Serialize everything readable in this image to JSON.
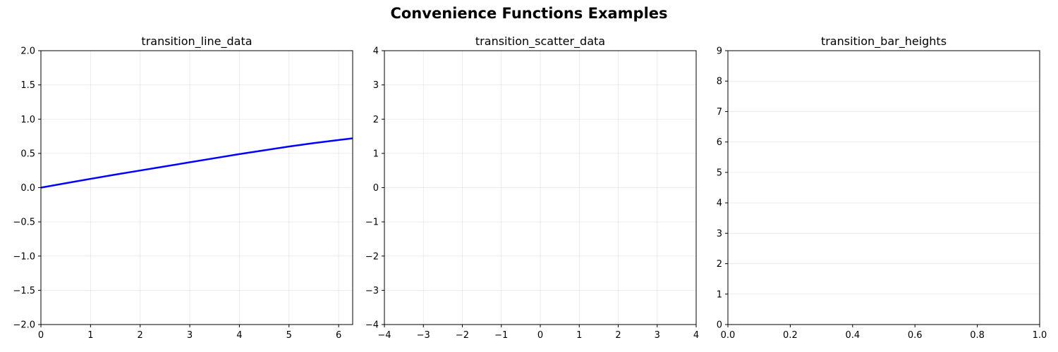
{
  "figure": {
    "title": "Convenience Functions Examples"
  },
  "chart_data": [
    {
      "type": "line",
      "title": "transition_line_data",
      "xlabel": "",
      "ylabel": "",
      "xlim": [
        0,
        6.283
      ],
      "ylim": [
        -2,
        2
      ],
      "xticks": [
        0,
        1,
        2,
        3,
        4,
        5,
        6
      ],
      "xtick_labels": [
        "0",
        "1",
        "2",
        "3",
        "4",
        "5",
        "6"
      ],
      "yticks": [
        -2.0,
        -1.5,
        -1.0,
        -0.5,
        0.0,
        0.5,
        1.0,
        1.5,
        2.0
      ],
      "ytick_labels": [
        "−2.0",
        "−1.5",
        "−1.0",
        "−0.5",
        "0.0",
        "0.5",
        "1.0",
        "1.5",
        "2.0"
      ],
      "grid": true,
      "series": [
        {
          "color": "#0000ff",
          "x": [
            0,
            0.5,
            1,
            1.5,
            2,
            2.5,
            3,
            3.5,
            4,
            4.5,
            5,
            5.5,
            6,
            6.283
          ],
          "y": [
            0,
            0.064,
            0.128,
            0.19,
            0.25,
            0.31,
            0.37,
            0.43,
            0.49,
            0.545,
            0.6,
            0.65,
            0.695,
            0.72
          ]
        }
      ]
    },
    {
      "type": "scatter",
      "title": "transition_scatter_data",
      "xlabel": "",
      "ylabel": "",
      "xlim": [
        -4,
        4
      ],
      "ylim": [
        -4,
        4
      ],
      "xticks": [
        -4,
        -3,
        -2,
        -1,
        0,
        1,
        2,
        3,
        4
      ],
      "xtick_labels": [
        "−4",
        "−3",
        "−2",
        "−1",
        "0",
        "1",
        "2",
        "3",
        "4"
      ],
      "yticks": [
        -4,
        -3,
        -2,
        -1,
        0,
        1,
        2,
        3,
        4
      ],
      "ytick_labels": [
        "−4",
        "−3",
        "−2",
        "−1",
        "0",
        "1",
        "2",
        "3",
        "4"
      ],
      "grid": true,
      "series": []
    },
    {
      "type": "bar",
      "title": "transition_bar_heights",
      "xlabel": "",
      "ylabel": "",
      "xlim": [
        0,
        1
      ],
      "ylim": [
        0,
        9
      ],
      "xticks": [
        0,
        0.2,
        0.4,
        0.6,
        0.8,
        1.0
      ],
      "xtick_labels": [
        "0.0",
        "0.2",
        "0.4",
        "0.6",
        "0.8",
        "1.0"
      ],
      "yticks": [
        0,
        1,
        2,
        3,
        4,
        5,
        6,
        7,
        8,
        9
      ],
      "ytick_labels": [
        "0",
        "1",
        "2",
        "3",
        "4",
        "5",
        "6",
        "7",
        "8",
        "9"
      ],
      "grid": true,
      "grid_axis": "y",
      "series": []
    }
  ]
}
